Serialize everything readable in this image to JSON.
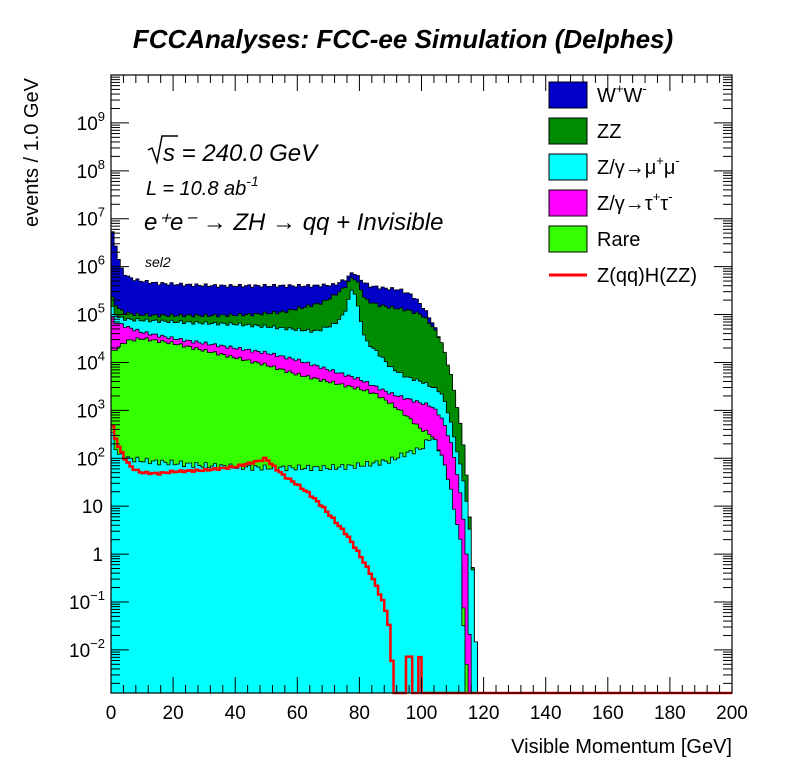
{
  "chart_data": {
    "type": "area",
    "title": "FCCAnalyses: FCC-ee Simulation (Delphes)",
    "xlabel": "Visible Momentum [GeV]",
    "ylabel": "events / 1.0 GeV",
    "xlim": [
      0,
      200
    ],
    "ylim_log10": [
      -2.9,
      10
    ],
    "y_scale": "log",
    "stacked": true,
    "legend_position": "top-right",
    "x_ticks": [
      0,
      20,
      40,
      60,
      80,
      100,
      120,
      140,
      160,
      180,
      200
    ],
    "y_tick_labels": [
      {
        "e": -2,
        "label": "10",
        "sup": "−2"
      },
      {
        "e": -1,
        "label": "10",
        "sup": "−1"
      },
      {
        "e": 0,
        "label": "1",
        "sup": ""
      },
      {
        "e": 1,
        "label": "10",
        "sup": ""
      },
      {
        "e": 2,
        "label": "10",
        "sup": "2"
      },
      {
        "e": 3,
        "label": "10",
        "sup": "3"
      },
      {
        "e": 4,
        "label": "10",
        "sup": "4"
      },
      {
        "e": 5,
        "label": "10",
        "sup": "5"
      },
      {
        "e": 6,
        "label": "10",
        "sup": "6"
      },
      {
        "e": 7,
        "label": "10",
        "sup": "7"
      },
      {
        "e": 8,
        "label": "10",
        "sup": "8"
      },
      {
        "e": 9,
        "label": "10",
        "sup": "9"
      }
    ],
    "annotations": {
      "sqrt_s": "s = 240.0 GeV",
      "lumi_main": "L = 10.8 ab",
      "lumi_sup": "-1",
      "process": "e⁺e⁻ → ZH → qq + Invisible",
      "selection": "sel2"
    },
    "stack_series": [
      {
        "name": "W⁺W⁻",
        "color": "#0000c8",
        "points": [
          [
            0,
            6.8
          ],
          [
            1,
            6.6
          ],
          [
            2,
            6.3
          ],
          [
            3,
            6.0
          ],
          [
            5,
            5.8
          ],
          [
            8,
            5.72
          ],
          [
            15,
            5.65
          ],
          [
            25,
            5.62
          ],
          [
            35,
            5.6
          ],
          [
            45,
            5.6
          ],
          [
            55,
            5.6
          ],
          [
            65,
            5.6
          ],
          [
            72,
            5.62
          ],
          [
            76,
            5.75
          ],
          [
            78,
            5.9
          ],
          [
            80,
            5.75
          ],
          [
            83,
            5.6
          ],
          [
            88,
            5.55
          ],
          [
            93,
            5.52
          ],
          [
            97,
            5.4
          ],
          [
            100,
            5.2
          ],
          [
            103,
            4.9
          ],
          [
            106,
            4.5
          ],
          [
            108,
            4.0
          ],
          [
            110,
            3.5
          ],
          [
            112,
            2.8
          ],
          [
            114,
            2.0
          ],
          [
            115,
            1.2
          ],
          [
            116,
            0.3
          ],
          [
            117,
            -0.8
          ],
          [
            118,
            -2.9
          ],
          [
            200,
            -2.9
          ]
        ]
      },
      {
        "name": "ZZ",
        "color": "#008c00",
        "points": [
          [
            0,
            5.4
          ],
          [
            2,
            5.15
          ],
          [
            4,
            5.05
          ],
          [
            8,
            5.0
          ],
          [
            15,
            4.98
          ],
          [
            25,
            4.98
          ],
          [
            35,
            4.98
          ],
          [
            45,
            5.0
          ],
          [
            55,
            5.05
          ],
          [
            62,
            5.15
          ],
          [
            68,
            5.25
          ],
          [
            72,
            5.4
          ],
          [
            75,
            5.55
          ],
          [
            78,
            5.8
          ],
          [
            80,
            5.6
          ],
          [
            82,
            5.3
          ],
          [
            86,
            5.2
          ],
          [
            90,
            5.15
          ],
          [
            95,
            5.1
          ],
          [
            100,
            5.0
          ],
          [
            103,
            4.8
          ],
          [
            106,
            4.5
          ],
          [
            108,
            4.1
          ],
          [
            110,
            3.6
          ],
          [
            112,
            2.9
          ],
          [
            114,
            2.1
          ],
          [
            115,
            1.2
          ],
          [
            116,
            0.3
          ],
          [
            117,
            -0.8
          ],
          [
            118,
            -2.9
          ],
          [
            200,
            -2.9
          ]
        ]
      },
      {
        "name": "Z/γ→μ⁺μ⁻",
        "color": "#00ffff",
        "points": [
          [
            0,
            5.2
          ],
          [
            2,
            4.95
          ],
          [
            5,
            4.9
          ],
          [
            10,
            4.88
          ],
          [
            20,
            4.85
          ],
          [
            30,
            4.82
          ],
          [
            40,
            4.8
          ],
          [
            50,
            4.75
          ],
          [
            58,
            4.7
          ],
          [
            66,
            4.65
          ],
          [
            72,
            4.8
          ],
          [
            75,
            5.0
          ],
          [
            78,
            5.6
          ],
          [
            80,
            5.0
          ],
          [
            82,
            4.45
          ],
          [
            86,
            4.2
          ],
          [
            90,
            3.9
          ],
          [
            95,
            3.7
          ],
          [
            100,
            3.6
          ],
          [
            103,
            3.5
          ],
          [
            106,
            3.4
          ],
          [
            108,
            3.1
          ],
          [
            110,
            2.6
          ],
          [
            112,
            2.0
          ],
          [
            114,
            1.4
          ],
          [
            115,
            0.8
          ],
          [
            116,
            0.2
          ],
          [
            117,
            -0.8
          ],
          [
            118,
            -2.9
          ],
          [
            200,
            -2.9
          ]
        ]
      },
      {
        "name": "Z/γ→τ⁺τ⁻",
        "color": "#ff00ff",
        "points": [
          [
            0,
            5.0
          ],
          [
            1,
            4.85
          ],
          [
            3,
            4.8
          ],
          [
            6,
            4.72
          ],
          [
            10,
            4.63
          ],
          [
            20,
            4.5
          ],
          [
            30,
            4.4
          ],
          [
            40,
            4.3
          ],
          [
            50,
            4.2
          ],
          [
            60,
            4.05
          ],
          [
            65,
            3.95
          ],
          [
            70,
            3.85
          ],
          [
            75,
            3.75
          ],
          [
            80,
            3.65
          ],
          [
            85,
            3.5
          ],
          [
            90,
            3.35
          ],
          [
            95,
            3.25
          ],
          [
            100,
            3.15
          ],
          [
            103,
            3.1
          ],
          [
            106,
            2.9
          ],
          [
            108,
            2.6
          ],
          [
            110,
            2.2
          ],
          [
            112,
            1.5
          ],
          [
            114,
            0.5
          ],
          [
            115,
            -0.5
          ],
          [
            116,
            -2.9
          ],
          [
            200,
            -2.9
          ]
        ]
      },
      {
        "name": "Rare",
        "color": "#33ff00",
        "points": [
          [
            0,
            4.2
          ],
          [
            2,
            4.3
          ],
          [
            5,
            4.45
          ],
          [
            10,
            4.5
          ],
          [
            15,
            4.45
          ],
          [
            20,
            4.4
          ],
          [
            30,
            4.25
          ],
          [
            40,
            4.1
          ],
          [
            50,
            3.95
          ],
          [
            60,
            3.75
          ],
          [
            70,
            3.6
          ],
          [
            80,
            3.45
          ],
          [
            85,
            3.35
          ],
          [
            90,
            3.15
          ],
          [
            95,
            2.9
          ],
          [
            100,
            2.6
          ],
          [
            103,
            2.5
          ],
          [
            105,
            2.3
          ],
          [
            107,
            1.9
          ],
          [
            109,
            1.3
          ],
          [
            111,
            0.5
          ],
          [
            113,
            -0.5
          ],
          [
            115,
            -2.9
          ],
          [
            200,
            -2.9
          ]
        ]
      }
    ],
    "hatch_series": {
      "name": "Z/γ→μ⁺μ⁻ (bottom layer)",
      "color": "#00ffff",
      "points": [
        [
          0,
          2.6
        ],
        [
          2,
          2.1
        ],
        [
          5,
          2.0
        ],
        [
          10,
          1.95
        ],
        [
          20,
          1.9
        ],
        [
          30,
          1.85
        ],
        [
          40,
          1.82
        ],
        [
          50,
          1.8
        ],
        [
          60,
          1.8
        ],
        [
          70,
          1.8
        ],
        [
          80,
          1.85
        ],
        [
          90,
          1.95
        ],
        [
          95,
          2.1
        ],
        [
          100,
          2.2
        ],
        [
          103,
          2.45
        ],
        [
          105,
          2.3
        ],
        [
          107,
          1.95
        ],
        [
          109,
          1.5
        ],
        [
          110,
          1.1
        ],
        [
          112,
          0.5
        ],
        [
          113,
          0.0
        ],
        [
          114,
          -2.9
        ],
        [
          200,
          -2.9
        ]
      ]
    },
    "signal_series": {
      "name": "Z(qq)H(ZZ)",
      "color": "#ff0000",
      "points": [
        [
          0,
          2.75
        ],
        [
          1,
          2.55
        ],
        [
          2,
          2.3
        ],
        [
          4,
          2.05
        ],
        [
          6,
          1.85
        ],
        [
          8,
          1.75
        ],
        [
          10,
          1.7
        ],
        [
          15,
          1.68
        ],
        [
          20,
          1.72
        ],
        [
          30,
          1.75
        ],
        [
          40,
          1.82
        ],
        [
          48,
          1.95
        ],
        [
          50,
          2.0
        ],
        [
          52,
          1.85
        ],
        [
          56,
          1.62
        ],
        [
          60,
          1.45
        ],
        [
          64,
          1.25
        ],
        [
          68,
          1.0
        ],
        [
          72,
          0.7
        ],
        [
          76,
          0.4
        ],
        [
          80,
          0.0
        ],
        [
          84,
          -0.45
        ],
        [
          88,
          -1.05
        ],
        [
          90,
          -1.6
        ],
        [
          91,
          -2.9
        ],
        [
          95,
          -2.9
        ],
        [
          95,
          -2.15
        ],
        [
          97,
          -2.15
        ],
        [
          97,
          -2.9
        ],
        [
          99,
          -2.9
        ],
        [
          99,
          -2.15
        ],
        [
          100,
          -2.15
        ],
        [
          100,
          -2.9
        ],
        [
          200,
          -2.9
        ]
      ]
    },
    "legend": [
      {
        "label": "W",
        "sup1": "+",
        "mid": "W",
        "sup2": "-",
        "color": "#0000c8",
        "kind": "box"
      },
      {
        "label": "ZZ",
        "color": "#008c00",
        "kind": "box"
      },
      {
        "label": "Z/γ→μ",
        "sup1": "+",
        "mid": "μ",
        "sup2": "-",
        "color": "#00ffff",
        "kind": "box"
      },
      {
        "label": "Z/γ→τ",
        "sup1": "+",
        "mid": "τ",
        "sup2": "-",
        "color": "#ff00ff",
        "kind": "box"
      },
      {
        "label": "Rare",
        "color": "#33ff00",
        "kind": "box"
      },
      {
        "label": "Z(qq)H(ZZ)",
        "color": "#ff0000",
        "kind": "line"
      }
    ]
  }
}
